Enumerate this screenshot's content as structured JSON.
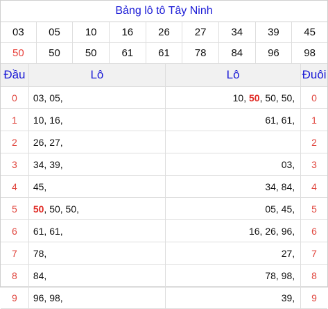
{
  "title": "Bảng lô tô Tây Ninh",
  "row1": [
    "03",
    "05",
    "10",
    "16",
    "26",
    "27",
    "34",
    "39",
    "45"
  ],
  "row2": [
    "50",
    "50",
    "50",
    "61",
    "61",
    "78",
    "84",
    "96",
    "98"
  ],
  "header": {
    "dau": "Đầu",
    "lo_left": "Lô",
    "lo_right": "Lô",
    "duoi": "Đuôi"
  },
  "rows": [
    {
      "d": "0",
      "left": [
        {
          "t": "03, "
        },
        {
          "t": "05,"
        }
      ],
      "right": [
        {
          "t": "10, "
        },
        {
          "t": "50",
          "hl": true
        },
        {
          "t": ", 50, 50,"
        }
      ],
      "u": "0"
    },
    {
      "d": "1",
      "left": [
        {
          "t": "10, "
        },
        {
          "t": "16,"
        }
      ],
      "right": [
        {
          "t": "61, 61,"
        }
      ],
      "u": "1"
    },
    {
      "d": "2",
      "left": [
        {
          "t": "26, "
        },
        {
          "t": "27,"
        }
      ],
      "right": [],
      "u": "2"
    },
    {
      "d": "3",
      "left": [
        {
          "t": "34, "
        },
        {
          "t": "39,"
        }
      ],
      "right": [
        {
          "t": "03,"
        }
      ],
      "u": "3"
    },
    {
      "d": "4",
      "left": [
        {
          "t": "45,"
        }
      ],
      "right": [
        {
          "t": "34, 84,"
        }
      ],
      "u": "4"
    },
    {
      "d": "5",
      "left": [
        {
          "t": "50",
          "hl": true
        },
        {
          "t": ", 50, 50,"
        }
      ],
      "right": [
        {
          "t": "05, 45,"
        }
      ],
      "u": "5"
    },
    {
      "d": "6",
      "left": [
        {
          "t": "61, 61,"
        }
      ],
      "right": [
        {
          "t": "16, 26, 96,"
        }
      ],
      "u": "6"
    },
    {
      "d": "7",
      "left": [
        {
          "t": "78,"
        }
      ],
      "right": [
        {
          "t": "27,"
        }
      ],
      "u": "7"
    },
    {
      "d": "8",
      "left": [
        {
          "t": "84,"
        }
      ],
      "right": [
        {
          "t": "78, 98,"
        }
      ],
      "u": "8"
    },
    {
      "d": "9",
      "left": [
        {
          "t": "96, 98,"
        }
      ],
      "right": [
        {
          "t": "39,"
        }
      ],
      "u": "9"
    }
  ]
}
